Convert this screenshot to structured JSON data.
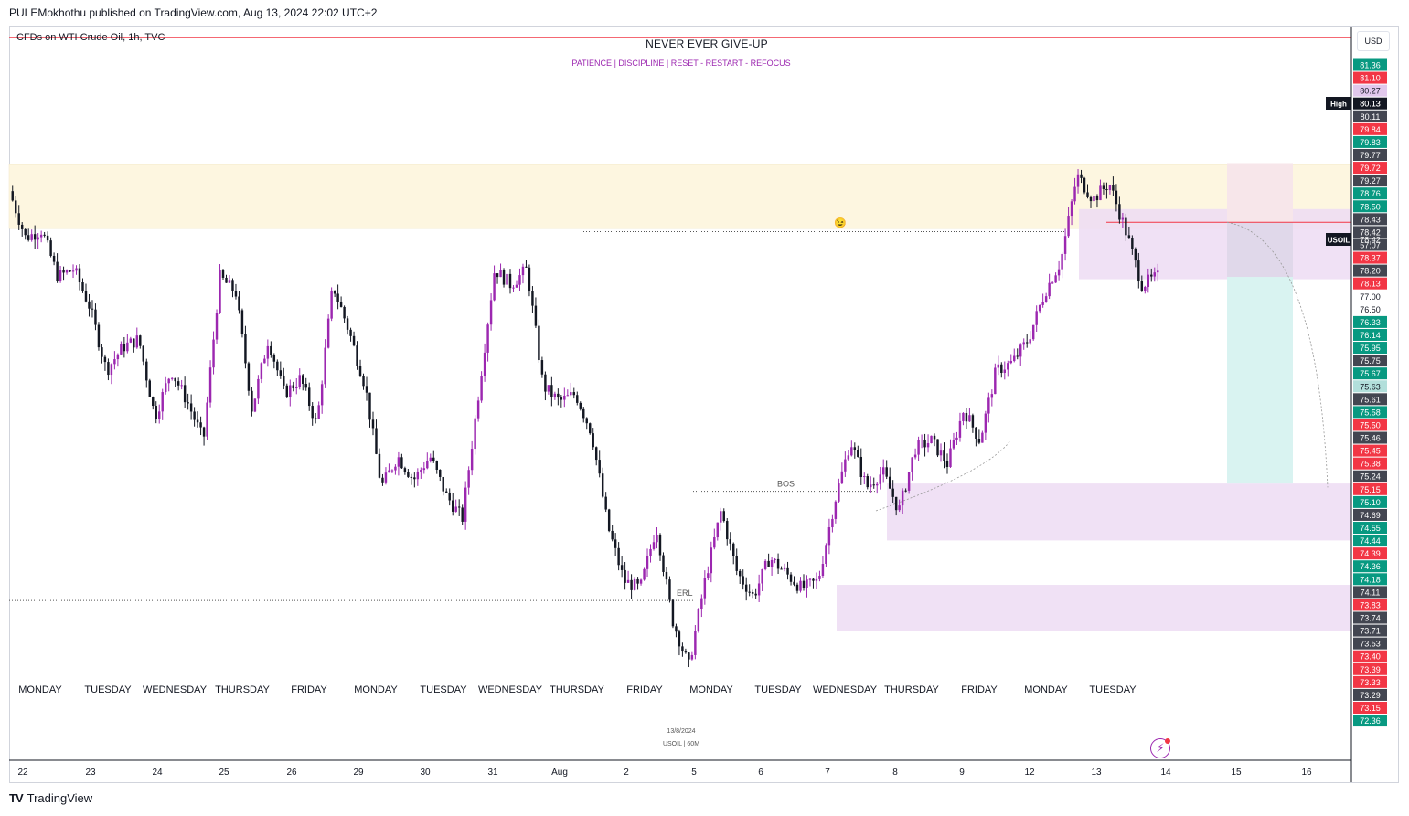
{
  "publisher_line": "PULEMokhothu published on TradingView.com, Aug 13, 2024 22:02 UTC+2",
  "symbol_line": "CFDs on WTI Crude Oil, 1h, TVC",
  "headline": "NEVER EVER GIVE-UP",
  "subline": "PATIENCE   |   DISCIPLINE   |   RESET - RESTART - REFOCUS",
  "currency": "USD",
  "footer_logo": "TradingView",
  "colors": {
    "up": "#9c27b0",
    "down": "#131722",
    "zone_supply": "#fdf6e0",
    "zone_demand": "#eddcf3",
    "target": "#d9f3f1",
    "risk": "#f7e6ea",
    "resistance": "#f23645"
  },
  "chart_data": {
    "type": "candlestick",
    "timeframe": "1h",
    "instrument": "USOIL",
    "ylim": [
      72.2,
      81.6
    ],
    "x_axis_days": [
      "22",
      "23",
      "24",
      "25",
      "26",
      "29",
      "30",
      "31",
      "Aug",
      "2",
      "5",
      "6",
      "7",
      "8",
      "9",
      "12",
      "13",
      "14",
      "15",
      "16"
    ],
    "weekday_labels": [
      "MONDAY",
      "TUESDAY",
      "WEDNESDAY",
      "THURSDAY",
      "FRIDAY",
      "MONDAY",
      "TUESDAY",
      "WEDNESDAY",
      "THURSDAY",
      "FRIDAY",
      "MONDAY",
      "TUESDAY",
      "WEDNESDAY",
      "THURSDAY",
      "FRIDAY",
      "MONDAY",
      "TUESDAY"
    ],
    "price_path": [
      [
        0,
        79.5
      ],
      [
        1,
        78.9
      ],
      [
        2,
        79.0
      ],
      [
        3,
        78.4
      ],
      [
        4,
        78.5
      ],
      [
        5,
        78.0
      ],
      [
        6,
        77.2
      ],
      [
        7,
        77.5
      ],
      [
        8,
        77.6
      ],
      [
        9,
        76.6
      ],
      [
        10,
        77.2
      ],
      [
        11,
        76.8
      ],
      [
        12,
        76.3
      ],
      [
        13,
        78.4
      ],
      [
        14,
        78.2
      ],
      [
        15,
        76.7
      ],
      [
        16,
        77.6
      ],
      [
        17,
        76.9
      ],
      [
        18,
        77.1
      ],
      [
        19,
        76.5
      ],
      [
        20,
        78.3
      ],
      [
        21,
        77.7
      ],
      [
        22,
        77.0
      ],
      [
        23,
        75.7
      ],
      [
        24,
        76.1
      ],
      [
        25,
        75.8
      ],
      [
        26,
        76.1
      ],
      [
        27,
        75.6
      ],
      [
        28,
        75.3
      ],
      [
        29,
        76.9
      ],
      [
        30,
        78.5
      ],
      [
        31,
        78.3
      ],
      [
        32,
        78.5
      ],
      [
        33,
        77.0
      ],
      [
        34,
        76.8
      ],
      [
        35,
        76.9
      ],
      [
        36,
        76.4
      ],
      [
        37,
        75.2
      ],
      [
        38,
        74.5
      ],
      [
        39,
        74.4
      ],
      [
        40,
        75.2
      ],
      [
        41,
        74.0
      ],
      [
        42,
        73.4
      ],
      [
        43,
        74.5
      ],
      [
        44,
        75.4
      ],
      [
        45,
        74.6
      ],
      [
        46,
        74.3
      ],
      [
        47,
        74.8
      ],
      [
        48,
        74.6
      ],
      [
        49,
        74.4
      ],
      [
        50,
        74.5
      ],
      [
        51,
        75.5
      ],
      [
        52,
        76.3
      ],
      [
        53,
        75.7
      ],
      [
        54,
        75.9
      ],
      [
        55,
        75.4
      ],
      [
        56,
        76.2
      ],
      [
        57,
        76.3
      ],
      [
        58,
        76.0
      ],
      [
        59,
        76.7
      ],
      [
        60,
        76.3
      ],
      [
        61,
        77.2
      ],
      [
        62,
        77.3
      ],
      [
        63,
        77.6
      ],
      [
        64,
        78.2
      ],
      [
        65,
        78.6
      ],
      [
        66,
        79.7
      ],
      [
        67,
        79.4
      ],
      [
        68,
        79.6
      ],
      [
        69,
        79.0
      ],
      [
        70,
        78.3
      ],
      [
        71,
        78.4
      ]
    ],
    "price_axis_labels": [
      {
        "value": "81.36",
        "color": "#089981",
        "fg": "#fff"
      },
      {
        "value": "81.10",
        "color": "#f23645",
        "fg": "#fff"
      },
      {
        "value": "80.27",
        "color": "#e1c8ec",
        "fg": "#131722"
      },
      {
        "value": "80.13",
        "color": "#131722",
        "fg": "#fff"
      },
      {
        "value": "80.11",
        "color": "#434651",
        "fg": "#fff"
      },
      {
        "value": "79.84",
        "color": "#f23645",
        "fg": "#fff"
      },
      {
        "value": "79.83",
        "color": "#089981",
        "fg": "#fff"
      },
      {
        "value": "79.77",
        "color": "#434651",
        "fg": "#fff"
      },
      {
        "value": "79.72",
        "color": "#f23645",
        "fg": "#fff"
      },
      {
        "value": "79.27",
        "color": "#434651",
        "fg": "#fff"
      },
      {
        "value": "78.76",
        "color": "#089981",
        "fg": "#fff"
      },
      {
        "value": "78.50",
        "color": "#089981",
        "fg": "#fff"
      },
      {
        "value": "78.43",
        "color": "#434651",
        "fg": "#fff"
      },
      {
        "value": "78.42",
        "color": "#434651",
        "fg": "#fff"
      },
      {
        "value": "57:07",
        "color": "#434651",
        "fg": "#fff"
      },
      {
        "value": "78.37",
        "color": "#f23645",
        "fg": "#fff"
      },
      {
        "value": "78.20",
        "color": "#434651",
        "fg": "#fff"
      },
      {
        "value": "78.13",
        "color": "#f23645",
        "fg": "#fff"
      },
      {
        "value": "77.00",
        "color": "#ffffff",
        "fg": "#131722"
      },
      {
        "value": "76.50",
        "color": "#ffffff",
        "fg": "#131722"
      },
      {
        "value": "76.33",
        "color": "#089981",
        "fg": "#fff"
      },
      {
        "value": "76.14",
        "color": "#089981",
        "fg": "#fff"
      },
      {
        "value": "75.95",
        "color": "#089981",
        "fg": "#fff"
      },
      {
        "value": "75.75",
        "color": "#434651",
        "fg": "#fff"
      },
      {
        "value": "75.67",
        "color": "#089981",
        "fg": "#fff"
      },
      {
        "value": "75.63",
        "color": "#b2dfdb",
        "fg": "#131722"
      },
      {
        "value": "75.61",
        "color": "#434651",
        "fg": "#fff"
      },
      {
        "value": "75.58",
        "color": "#089981",
        "fg": "#fff"
      },
      {
        "value": "75.50",
        "color": "#f23645",
        "fg": "#fff"
      },
      {
        "value": "75.46",
        "color": "#434651",
        "fg": "#fff"
      },
      {
        "value": "75.45",
        "color": "#f23645",
        "fg": "#fff"
      },
      {
        "value": "75.38",
        "color": "#f23645",
        "fg": "#fff"
      },
      {
        "value": "75.24",
        "color": "#434651",
        "fg": "#fff"
      },
      {
        "value": "75.15",
        "color": "#f23645",
        "fg": "#fff"
      },
      {
        "value": "75.10",
        "color": "#089981",
        "fg": "#fff"
      },
      {
        "value": "74.69",
        "color": "#434651",
        "fg": "#fff"
      },
      {
        "value": "74.55",
        "color": "#089981",
        "fg": "#fff"
      },
      {
        "value": "74.44",
        "color": "#089981",
        "fg": "#fff"
      },
      {
        "value": "74.39",
        "color": "#f23645",
        "fg": "#fff"
      },
      {
        "value": "74.36",
        "color": "#089981",
        "fg": "#fff"
      },
      {
        "value": "74.18",
        "color": "#089981",
        "fg": "#fff"
      },
      {
        "value": "74.11",
        "color": "#434651",
        "fg": "#fff"
      },
      {
        "value": "73.83",
        "color": "#f23645",
        "fg": "#fff"
      },
      {
        "value": "73.74",
        "color": "#434651",
        "fg": "#fff"
      },
      {
        "value": "73.71",
        "color": "#434651",
        "fg": "#fff"
      },
      {
        "value": "73.53",
        "color": "#434651",
        "fg": "#fff"
      },
      {
        "value": "73.40",
        "color": "#f23645",
        "fg": "#fff"
      },
      {
        "value": "73.39",
        "color": "#f23645",
        "fg": "#fff"
      },
      {
        "value": "73.33",
        "color": "#f23645",
        "fg": "#fff"
      },
      {
        "value": "73.29",
        "color": "#434651",
        "fg": "#fff"
      },
      {
        "value": "73.15",
        "color": "#f23645",
        "fg": "#fff"
      },
      {
        "value": "72.36",
        "color": "#089981",
        "fg": "#fff"
      }
    ],
    "side_tags": [
      {
        "label": "High",
        "value": "80.13"
      },
      {
        "label": "USOIL",
        "value": "78.42"
      }
    ],
    "annotations": {
      "bos": "BOS",
      "erl": "ERL",
      "date_stamp": "13/8/2024",
      "symbol_stamp": "USOIL | 60M",
      "cursor_emoji": "😉"
    }
  }
}
